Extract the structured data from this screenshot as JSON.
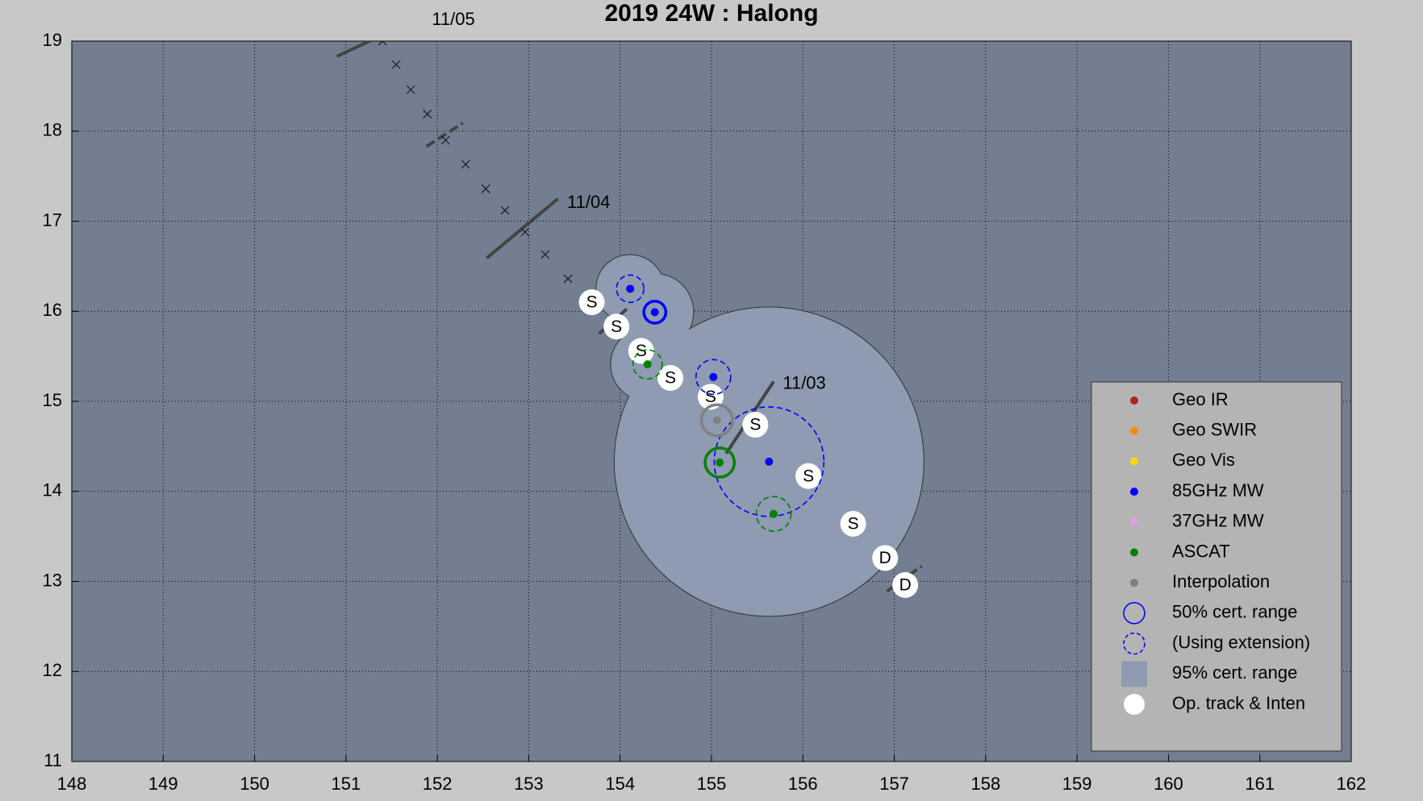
{
  "chart_data": {
    "type": "scatter",
    "title": "2019  24W :  Halong",
    "xlim": [
      148,
      162
    ],
    "xticks": [
      148,
      149,
      150,
      151,
      152,
      153,
      154,
      155,
      156,
      157,
      158,
      159,
      160,
      161,
      162
    ],
    "ylim": [
      11,
      19
    ],
    "yticks": [
      11,
      12,
      13,
      14,
      15,
      16,
      17,
      18,
      19
    ],
    "grid": true,
    "legend": "lower right",
    "annotations": [
      {
        "text": "11/05",
        "x": 151.94,
        "y": 19.23
      },
      {
        "text": "11/04",
        "x": 153.42,
        "y": 17.2
      },
      {
        "text": "11/03",
        "x": 155.78,
        "y": 15.19
      }
    ],
    "time_marks": [
      {
        "x1": 150.9,
        "y1": 18.83,
        "x2": 151.28,
        "y2": 19.01,
        "dashed": false
      },
      {
        "x1": 151.88,
        "y1": 17.83,
        "x2": 152.28,
        "y2": 18.09,
        "dashed": true
      },
      {
        "x1": 152.54,
        "y1": 16.59,
        "x2": 153.32,
        "y2": 17.25,
        "dashed": false
      },
      {
        "x1": 153.77,
        "y1": 15.75,
        "x2": 154.1,
        "y2": 16.05,
        "dashed": true
      },
      {
        "x1": 155.16,
        "y1": 14.42,
        "x2": 155.68,
        "y2": 15.22,
        "dashed": false
      },
      {
        "x1": 156.92,
        "y1": 12.89,
        "x2": 157.3,
        "y2": 13.17,
        "dashed": true
      }
    ],
    "track": {
      "x": [
        151.4,
        151.55,
        151.71,
        151.89,
        152.09,
        152.31,
        152.53,
        152.74,
        152.96,
        153.18,
        153.43
      ],
      "y": [
        19.0,
        18.74,
        18.46,
        18.19,
        17.9,
        17.63,
        17.36,
        17.12,
        16.88,
        16.63,
        16.36
      ]
    },
    "certainty_95": {
      "name": "95% cert. range",
      "color": "#8e9bb0",
      "x": [
        155.63,
        154.11,
        154.38,
        154.3
      ],
      "y": [
        14.33,
        16.25,
        15.99,
        15.41
      ],
      "radius": [
        1.69,
        0.37,
        0.42,
        0.4
      ]
    },
    "cert_50_name": "50% cert. range",
    "extension_name": "(Using extension)",
    "series": [
      {
        "name": "Geo IR",
        "color": "#b22222",
        "x": [],
        "y": [],
        "radius": [],
        "extension": []
      },
      {
        "name": "Geo SWIR",
        "color": "#ff8c00",
        "x": [],
        "y": [],
        "radius": [],
        "extension": []
      },
      {
        "name": "Geo Vis",
        "color": "#ffd700",
        "x": [],
        "y": [],
        "radius": [],
        "extension": []
      },
      {
        "name": "85GHz MW",
        "color": "#0000ff",
        "x": [
          154.11,
          154.38,
          155.02,
          155.63
        ],
        "y": [
          16.25,
          15.99,
          15.27,
          14.33
        ],
        "radius": [
          0.15,
          0.12,
          0.19,
          0.6
        ],
        "extension": [
          true,
          false,
          true,
          true
        ]
      },
      {
        "name": "37GHz MW",
        "color": "#dda0dd",
        "x": [],
        "y": [],
        "radius": [],
        "extension": []
      },
      {
        "name": "ASCAT",
        "color": "#008000",
        "x": [
          154.3,
          155.09,
          155.68
        ],
        "y": [
          15.41,
          14.32,
          13.75
        ],
        "radius": [
          0.16,
          0.16,
          0.19
        ],
        "extension": [
          true,
          false,
          true
        ]
      },
      {
        "name": "Interpolation",
        "color": "#808080",
        "x": [
          155.06
        ],
        "y": [
          14.79
        ],
        "radius": [
          0.17
        ],
        "extension": [
          false
        ]
      }
    ],
    "op_track": {
      "name": "Op. track & Inten",
      "color": "#ffffff",
      "x": [
        153.69,
        153.96,
        154.23,
        154.55,
        154.99,
        155.48,
        156.06,
        156.55,
        156.9,
        157.12
      ],
      "y": [
        16.1,
        15.83,
        15.56,
        15.26,
        15.05,
        14.74,
        14.17,
        13.64,
        13.26,
        12.96
      ],
      "labels": [
        "S",
        "S",
        "S",
        "S",
        "S",
        "S",
        "S",
        "S",
        "D",
        "D"
      ]
    }
  }
}
